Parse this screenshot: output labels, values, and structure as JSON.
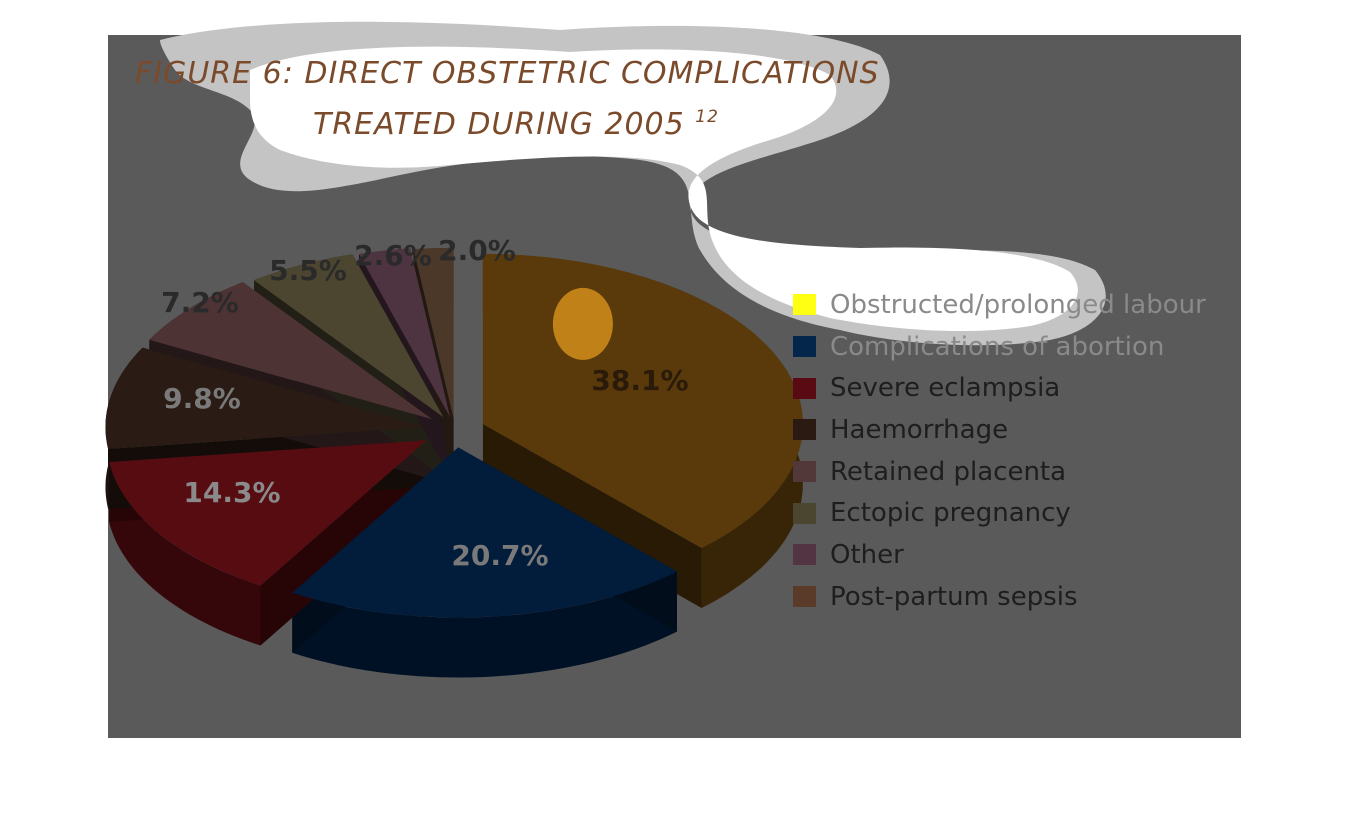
{
  "title_line1": "FIGURE 6: DIRECT OBSTETRIC COMPLICATIONS",
  "title_line2": "TREATED DURING 2005",
  "title_superscript": "12",
  "colors": {
    "panel": "#5a5a5a",
    "title": "#7a4a2a"
  },
  "chart_data": {
    "type": "pie",
    "title": "FIGURE 6: DIRECT OBSTETRIC COMPLICATIONS TREATED DURING 2005",
    "legend_position": "right",
    "unit": "%",
    "slices": [
      {
        "label": "Obstructed/prolonged labour",
        "value": 38.1,
        "value_label": "38.1%",
        "color": "#5a3a0a"
      },
      {
        "label": "Complications of abortion",
        "value": 20.7,
        "value_label": "20.7%",
        "color": "#021c3c"
      },
      {
        "label": "Severe eclampsia",
        "value": 14.3,
        "value_label": "14.3%",
        "color": "#560c10"
      },
      {
        "label": "Haemorrhage",
        "value": 9.8,
        "value_label": "9.8%",
        "color": "#2a1b14"
      },
      {
        "label": "Retained placenta",
        "value": 7.2,
        "value_label": "7.2%",
        "color": "#4e3335"
      },
      {
        "label": "Ectopic pregnancy",
        "value": 5.5,
        "value_label": "5.5%",
        "color": "#4c4630"
      },
      {
        "label": "Other",
        "value": 2.6,
        "value_label": "2.6%",
        "color": "#4e3440"
      },
      {
        "label": "Post-partum sepsis",
        "value": 2.0,
        "value_label": "2.0%",
        "color": "#4c3828"
      }
    ]
  },
  "legend": [
    {
      "label": "Obstructed/prolonged labour",
      "color": "#ffff14"
    },
    {
      "label": "Complications of abortion",
      "color": "#04264a"
    },
    {
      "label": "Severe eclampsia",
      "color": "#5a0a12"
    },
    {
      "label": "Haemorrhage",
      "color": "#2a1a12"
    },
    {
      "label": "Retained placenta",
      "color": "#523838"
    },
    {
      "label": "Ectopic pregnancy",
      "color": "#4a4630"
    },
    {
      "label": "Other",
      "color": "#523442"
    },
    {
      "label": "Post-partum sepsis",
      "color": "#5a3a28"
    }
  ]
}
